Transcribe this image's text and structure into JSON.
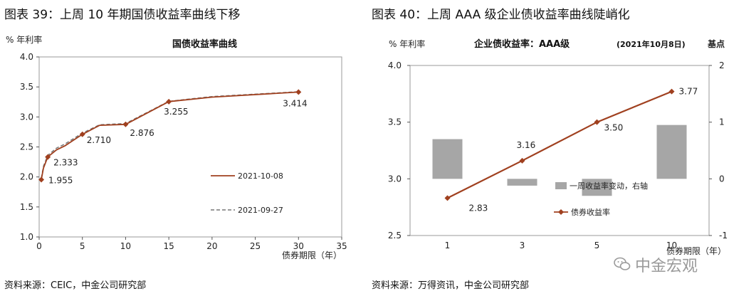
{
  "figures": [
    {
      "heading": "图表 39：上周 10 年期国债收益率曲线下移",
      "source": "资料来源：CEIC，中金公司研究部"
    },
    {
      "heading": "图表 40：上周 AAA 级企业债收益率曲线陡峭化",
      "source": "资料来源：万得资讯，中金公司研究部"
    }
  ],
  "watermark": "中金宏观",
  "colors": {
    "series_main": "#a0401f",
    "bar": "#a6a6a6",
    "axis": "#555555"
  },
  "chart_data": [
    {
      "type": "line",
      "title": "国债收益率曲线",
      "ylabel": "% 年利率",
      "xlabel": "债券期限（年）",
      "xlim": [
        0,
        35
      ],
      "ylim": [
        1.0,
        4.0
      ],
      "xticks": [
        "0",
        "5",
        "10",
        "15",
        "20",
        "25",
        "30",
        "35"
      ],
      "yticks": [
        "1.0",
        "1.5",
        "2.0",
        "2.5",
        "3.0",
        "3.5",
        "4.0"
      ],
      "legend_position": "right",
      "series": [
        {
          "name": "2021-10-08",
          "style": "solid",
          "color": "#a0401f",
          "x": [
            0.25,
            0.5,
            1,
            2,
            3,
            5,
            7,
            10,
            15,
            20,
            30
          ],
          "y": [
            1.955,
            2.15,
            2.333,
            2.45,
            2.52,
            2.71,
            2.86,
            2.876,
            3.255,
            3.33,
            3.414
          ],
          "markers": [
            0.25,
            1,
            5,
            10,
            15,
            30
          ],
          "labels": [
            "1.955",
            "2.333",
            "2.710",
            "2.876",
            "3.255",
            "3.414"
          ]
        },
        {
          "name": "2021-09-27",
          "style": "dashed",
          "color": "#777777",
          "x": [
            0.25,
            0.5,
            1,
            2,
            3,
            5,
            7,
            10,
            15,
            20,
            30
          ],
          "y": [
            1.98,
            2.18,
            2.36,
            2.48,
            2.55,
            2.73,
            2.87,
            2.89,
            3.26,
            3.34,
            3.42
          ]
        }
      ]
    },
    {
      "type": "bar+line",
      "title": "企业债收益率：AAA级",
      "date_note": "(2021年10月8日)",
      "ylabel_left": "% 年利率",
      "ylabel_right": "基点",
      "xlabel": "债券期限（年）",
      "categories": [
        "1",
        "3",
        "5",
        "10"
      ],
      "ylim_left": [
        2.5,
        4.0
      ],
      "yticks_left": [
        "2.5",
        "3.0",
        "3.5",
        "4.0"
      ],
      "ylim_right": [
        -1,
        2
      ],
      "yticks_right": [
        "-1",
        "0",
        "1",
        "2"
      ],
      "legend_position": "right",
      "series": [
        {
          "name": "一周收益率变动，右轴",
          "type": "bar",
          "axis": "right",
          "color": "#a6a6a6",
          "values": [
            0.7,
            -0.12,
            -0.3,
            0.95
          ]
        },
        {
          "name": "债券收益率",
          "type": "line",
          "axis": "left",
          "color": "#a0401f",
          "values": [
            2.83,
            3.16,
            3.5,
            3.77
          ],
          "labels": [
            "2.83",
            "3.16",
            "3.50",
            "3.77"
          ]
        }
      ]
    }
  ]
}
